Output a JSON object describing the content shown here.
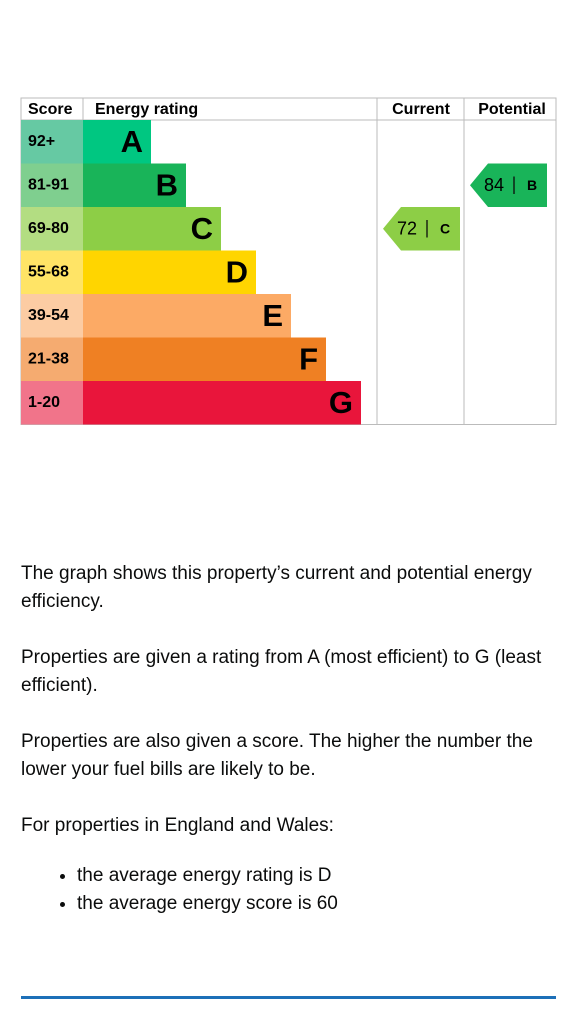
{
  "table": {
    "headers": [
      "Score",
      "Energy rating",
      "Current",
      "Potential"
    ],
    "rows": [
      {
        "score": "92+",
        "band": "A"
      },
      {
        "score": "81-91",
        "band": "B"
      },
      {
        "score": "69-80",
        "band": "C"
      },
      {
        "score": "55-68",
        "band": "D"
      },
      {
        "score": "39-54",
        "band": "E"
      },
      {
        "score": "21-38",
        "band": "F"
      },
      {
        "score": "1-20",
        "band": "G"
      }
    ]
  },
  "current": {
    "score": 72,
    "band": "C"
  },
  "potential": {
    "score": 84,
    "band": "B"
  },
  "text": {
    "paragraphs": [
      "The graph shows this property’s current and potential energy efficiency.",
      "Properties are given a rating from A (most efficient) to G (least efficient).",
      "Properties are also given a score. The higher the number the lower your fuel bills are likely to be.",
      "For properties in England and Wales:"
    ],
    "bullets": [
      "the average energy rating is D",
      "the average energy score is 60"
    ]
  }
}
